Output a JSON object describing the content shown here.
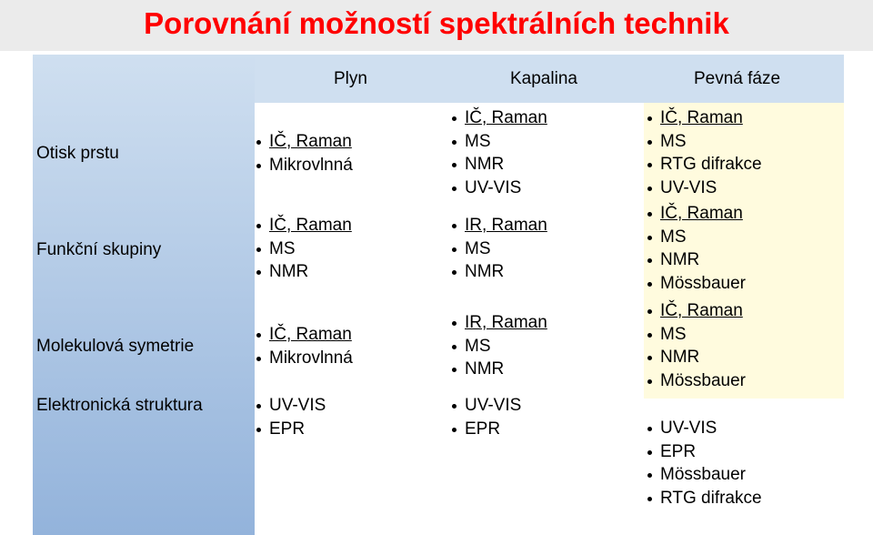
{
  "title": "Porovnání možností spektrálních technik",
  "columns": [
    "Plyn",
    "Kapalina",
    "Pevná fáze"
  ],
  "rows": [
    {
      "label": "Otisk prstu",
      "gas": [
        "IČ, Raman",
        "Mikrovlnná"
      ],
      "liquid": [
        "IČ, Raman",
        "MS",
        "NMR",
        "UV-VIS"
      ],
      "solid": [
        "IČ, Raman",
        "MS",
        "RTG difrakce",
        "UV-VIS"
      ]
    },
    {
      "label": "Funkční skupiny",
      "gas": [
        "IČ, Raman",
        "MS",
        "NMR"
      ],
      "liquid": [
        "IR, Raman",
        "MS",
        "NMR"
      ],
      "solid": [
        "IČ, Raman",
        "MS",
        "NMR",
        "Mössbauer"
      ]
    },
    {
      "label": "Molekulová symetrie",
      "gas": [
        "IČ, Raman",
        "Mikrovlnná"
      ],
      "liquid": [
        "IR, Raman",
        "MS",
        "NMR"
      ],
      "solid": [
        "IČ, Raman",
        "MS",
        "NMR",
        "Mössbauer"
      ]
    },
    {
      "label": "Elektronická struktura",
      "gas": [
        "UV-VIS",
        "EPR"
      ],
      "liquid": [
        "UV-VIS",
        "EPR"
      ],
      "solid": [
        "UV-VIS",
        "EPR",
        "Mössbauer",
        "RTG difrakce"
      ]
    }
  ],
  "colors": {
    "title": "#ff0000",
    "title_band": "#ebebeb",
    "header_light_blue": "#cfdff0",
    "row_header_dark_blue": "#93b3db",
    "solid_cell_yellow": "#fffbde"
  }
}
